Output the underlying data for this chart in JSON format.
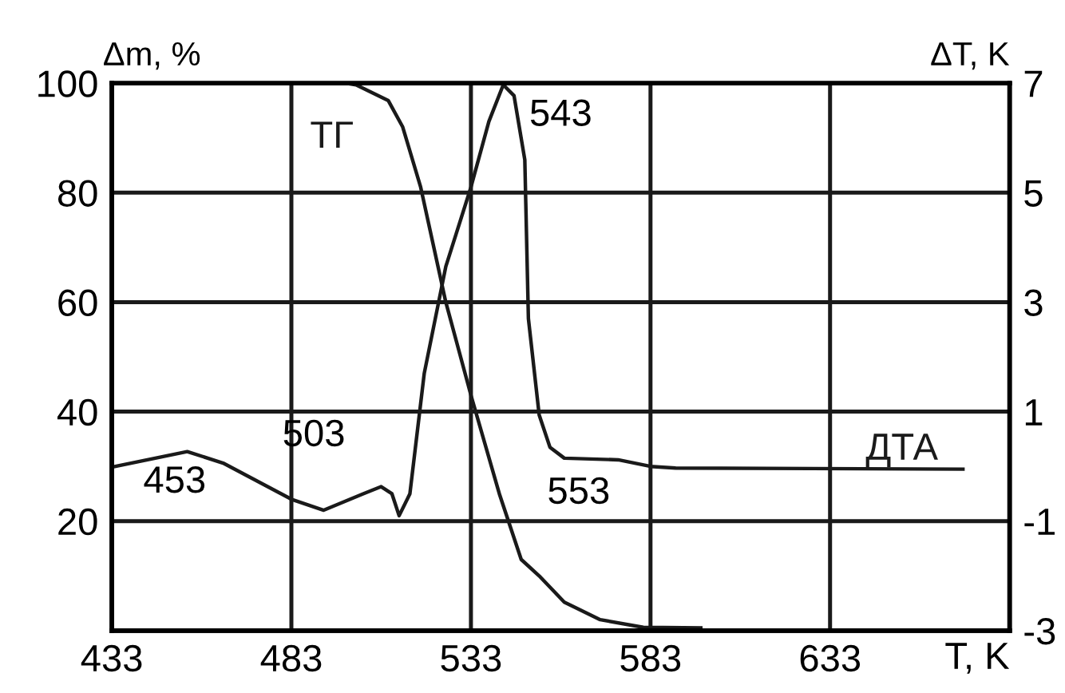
{
  "chart_data": {
    "type": "line",
    "xlabel": "T, K",
    "ylabel": "Δm, %",
    "y2label": "ΔT, K",
    "xlim": [
      433,
      683
    ],
    "xticks": [
      433,
      483,
      533,
      583,
      633
    ],
    "ylim": [
      0,
      100
    ],
    "yticks": [
      {
        "value": 0,
        "label": null
      },
      20,
      40,
      60,
      80,
      100
    ],
    "y2lim": [
      -3,
      7
    ],
    "y2ticks": [
      -3,
      -1,
      1,
      3,
      5,
      7
    ],
    "grid": true,
    "legend": false,
    "marker": "none",
    "line_style": "solid",
    "annotations": [
      "453",
      "503",
      "543",
      "553"
    ],
    "series": [
      {
        "name": "ТГ",
        "color": "#1a1a1a",
        "axis": "y",
        "x": [
          433,
          470,
          498,
          501,
          510,
          514,
          519,
          526,
          533,
          541,
          547,
          552,
          559,
          569,
          581,
          597
        ],
        "values": [
          100,
          100,
          100,
          99.7,
          96.8,
          92,
          81,
          60,
          43,
          24.8,
          13,
          10,
          5.2,
          2,
          0.6,
          0.5
        ]
      },
      {
        "name": "ДТА",
        "color": "#1a1a1a",
        "axis": "y2",
        "x": [
          434,
          454,
          464,
          483,
          492,
          503,
          508,
          511,
          513,
          516,
          520,
          526,
          533,
          538,
          542,
          545,
          548,
          549,
          552,
          555,
          559,
          574,
          583,
          590,
          670
        ],
        "values": [
          0.0,
          0.27,
          0.06,
          -0.6,
          -0.8,
          -0.5,
          -0.37,
          -0.5,
          -0.9,
          -0.5,
          1.7,
          3.65,
          5.1,
          6.3,
          6.97,
          6.77,
          5.6,
          2.7,
          0.94,
          0.35,
          0.15,
          0.12,
          0.0,
          -0.03,
          -0.05
        ]
      }
    ]
  }
}
